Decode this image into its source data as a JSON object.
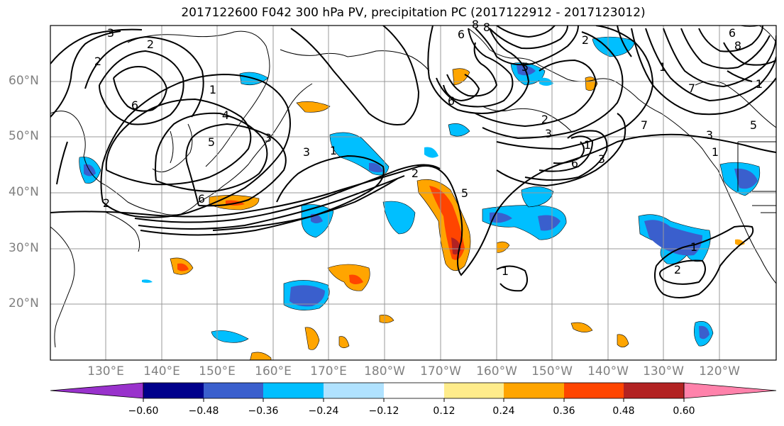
{
  "title": "2017122600 F042 300 hPa PV, precipitation PC (2017122912 - 2017123012)",
  "map": {
    "projection": "PlateCarree",
    "lon_range": [
      120,
      -110
    ],
    "lat_range": [
      10,
      70
    ],
    "lat_labels": [
      {
        "text": "60°N",
        "lat": 60
      },
      {
        "text": "50°N",
        "lat": 50
      },
      {
        "text": "40°N",
        "lat": 40
      },
      {
        "text": "30°N",
        "lat": 30
      },
      {
        "text": "20°N",
        "lat": 20
      }
    ],
    "lon_labels": [
      {
        "text": "130°E",
        "lon": 130
      },
      {
        "text": "140°E",
        "lon": 140
      },
      {
        "text": "150°E",
        "lon": 150
      },
      {
        "text": "160°E",
        "lon": 160
      },
      {
        "text": "170°E",
        "lon": 170
      },
      {
        "text": "180°W",
        "lon": 180
      },
      {
        "text": "170°W",
        "lon": 190
      },
      {
        "text": "160°W",
        "lon": 200
      },
      {
        "text": "150°W",
        "lon": 210
      },
      {
        "text": "140°W",
        "lon": 220
      },
      {
        "text": "130°W",
        "lon": 230
      },
      {
        "text": "120°W",
        "lon": 240
      }
    ],
    "contour_labels": [
      "3",
      "2",
      "2",
      "6",
      "1",
      "4",
      "5",
      "3",
      "3",
      "1",
      "6",
      "2",
      "6",
      "8",
      "6",
      "2",
      "3",
      "8",
      "5",
      "6",
      "2",
      "3",
      "1",
      "5",
      "2",
      "1",
      "6",
      "7",
      "7",
      "3",
      "1",
      "5",
      "8",
      "1",
      "1",
      "1",
      "2"
    ]
  },
  "colorbar": {
    "ticks": [
      "−0.60",
      "−0.48",
      "−0.36",
      "−0.24",
      "−0.12",
      "0.12",
      "0.24",
      "0.36",
      "0.48",
      "0.60"
    ],
    "colors": [
      "#9932cc",
      "#00008b",
      "#3a5fcd",
      "#00bfff",
      "#b0e2ff",
      "#ffffff",
      "#ffec8b",
      "#ffa500",
      "#ff4500",
      "#b22222",
      "#ff82ab"
    ],
    "extend": "both"
  }
}
